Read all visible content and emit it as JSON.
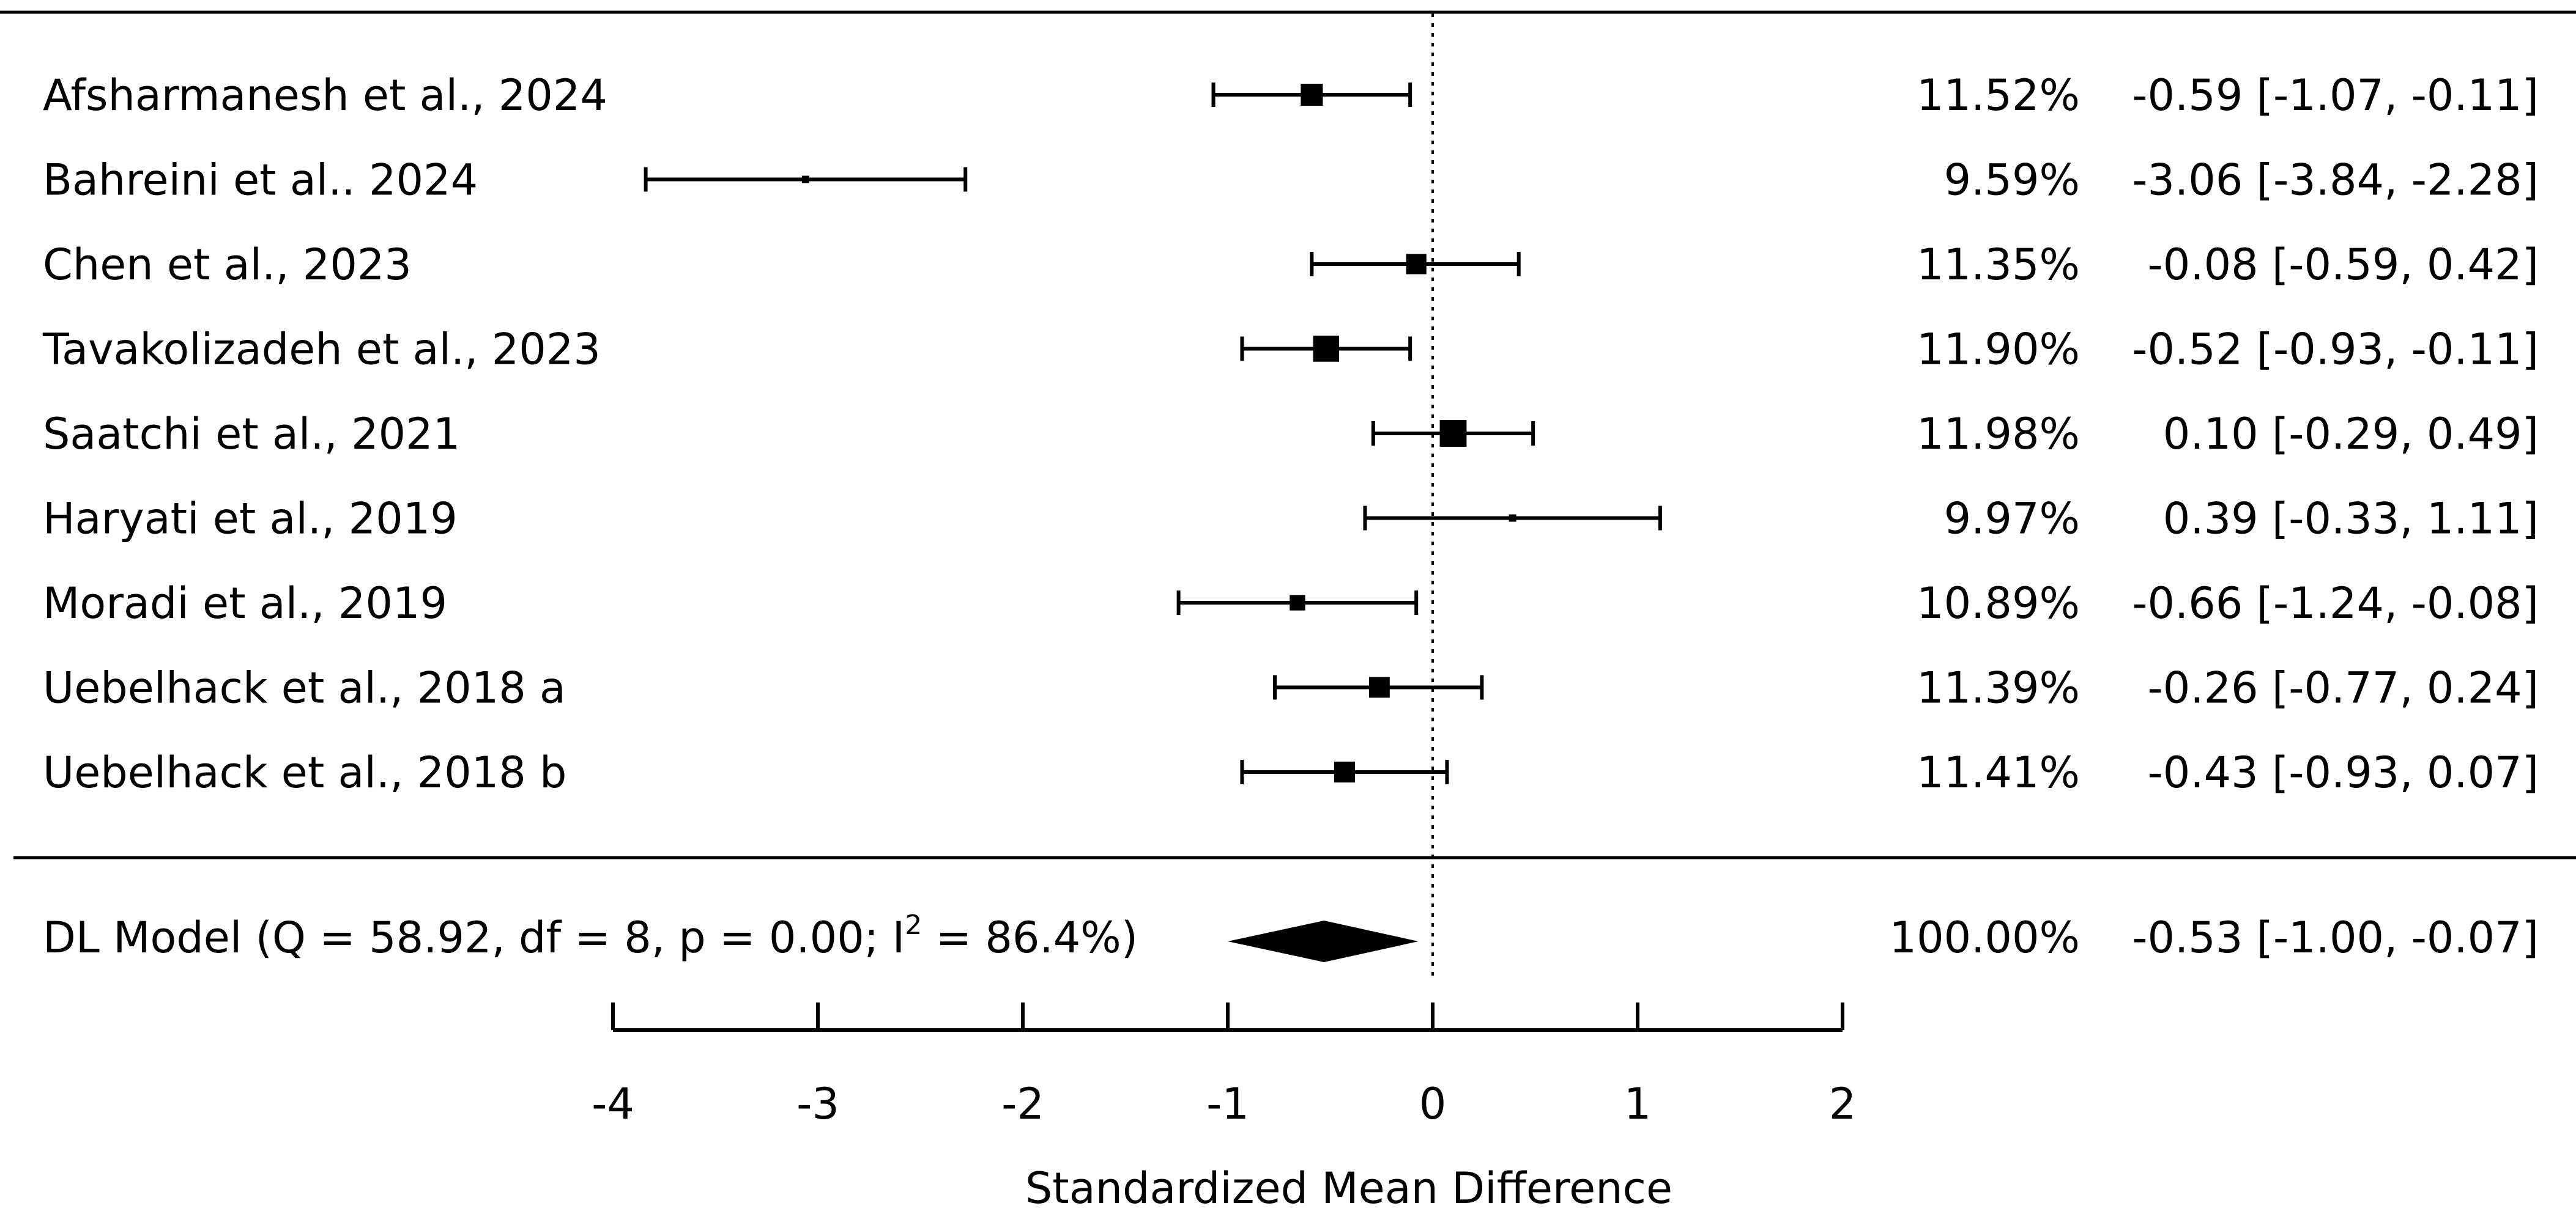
{
  "chart_data": {
    "type": "forest",
    "x_label": "Standardized Mean Difference",
    "x_ticks": [
      -4,
      -3,
      -2,
      -1,
      0,
      1,
      2
    ],
    "x_tick_labels": [
      "-4",
      "-3",
      "-2",
      "-1",
      "0",
      "1",
      "2"
    ],
    "xlim": [
      -4,
      2
    ],
    "null_value": 0,
    "studies": [
      {
        "label": "Afsharmanesh et al., 2024",
        "weight": 11.52,
        "weight_text": "11.52%",
        "est": -0.59,
        "lo": -1.07,
        "hi": -0.11,
        "ci_text": "-0.59 [-1.07, -0.11]"
      },
      {
        "label": "Bahreini et al.. 2024",
        "weight": 9.59,
        "weight_text": "9.59%",
        "est": -3.06,
        "lo": -3.84,
        "hi": -2.28,
        "ci_text": "-3.06 [-3.84, -2.28]"
      },
      {
        "label": "Chen et al., 2023",
        "weight": 11.35,
        "weight_text": "11.35%",
        "est": -0.08,
        "lo": -0.59,
        "hi": 0.42,
        "ci_text": "-0.08 [-0.59,  0.42]"
      },
      {
        "label": "Tavakolizadeh et al., 2023",
        "weight": 11.9,
        "weight_text": "11.90%",
        "est": -0.52,
        "lo": -0.93,
        "hi": -0.11,
        "ci_text": "-0.52 [-0.93, -0.11]"
      },
      {
        "label": "Saatchi et al., 2021",
        "weight": 11.98,
        "weight_text": "11.98%",
        "est": 0.1,
        "lo": -0.29,
        "hi": 0.49,
        "ci_text": " 0.10 [-0.29,  0.49]"
      },
      {
        "label": "Haryati et al., 2019",
        "weight": 9.97,
        "weight_text": "9.97%",
        "est": 0.39,
        "lo": -0.33,
        "hi": 1.11,
        "ci_text": " 0.39 [-0.33,  1.11]"
      },
      {
        "label": "Moradi et al., 2019",
        "weight": 10.89,
        "weight_text": "10.89%",
        "est": -0.66,
        "lo": -1.24,
        "hi": -0.08,
        "ci_text": "-0.66 [-1.24, -0.08]"
      },
      {
        "label": "Uebelhack et al., 2018 a",
        "weight": 11.39,
        "weight_text": "11.39%",
        "est": -0.26,
        "lo": -0.77,
        "hi": 0.24,
        "ci_text": "-0.26 [-0.77,  0.24]"
      },
      {
        "label": "Uebelhack et al., 2018 b",
        "weight": 11.41,
        "weight_text": "11.41%",
        "est": -0.43,
        "lo": -0.93,
        "hi": 0.07,
        "ci_text": "-0.43 [-0.93,  0.07]"
      }
    ],
    "summary": {
      "label_prefix": "DL Model (Q = 58.92, df = 8, p = 0.00; I",
      "label_sup": "2",
      "label_suffix": " = 86.4%)",
      "weight_text": "100.00%",
      "est": -0.53,
      "lo": -1.0,
      "hi": -0.07,
      "ci_text": "-0.53 [-1.00, -0.07]"
    }
  }
}
